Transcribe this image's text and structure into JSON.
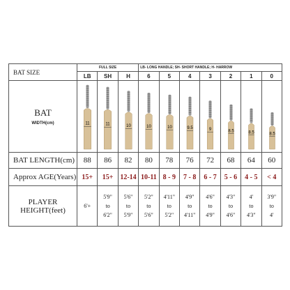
{
  "header": {
    "title": "BAT SIZE",
    "full_size": "FULL SIZE",
    "legend": "LB- LONG HANDLE; SH- SHORT HANDLE; H- HARROW"
  },
  "columns": [
    "LB",
    "SH",
    "H",
    "6",
    "5",
    "4",
    "3",
    "2",
    "1",
    "0"
  ],
  "bat": {
    "label": "BAT",
    "sublabel": "WIDTH(cm)",
    "widths": [
      11,
      11,
      10,
      10,
      10,
      9.5,
      9,
      8.5,
      8.5,
      8.5
    ]
  },
  "length": {
    "label": "BAT LENGTH(cm)",
    "values": [
      88,
      86,
      82,
      80,
      78,
      76,
      72,
      68,
      64,
      60
    ]
  },
  "age": {
    "label": "Approx AGE(Years)",
    "values": [
      "15+",
      "15+",
      "12-14",
      "10-11",
      "8 - 9",
      "7 - 8",
      "6 - 7",
      "5 - 6",
      "4 - 5",
      "< 4"
    ]
  },
  "height": {
    "label": "PLAYER HEIGHT(feet)",
    "values": [
      [
        "6'+"
      ],
      [
        "5'9\"",
        "to",
        "6'2\""
      ],
      [
        "5'6\"",
        "to",
        "5'9\""
      ],
      [
        "5'2\"",
        "to",
        "5'6\""
      ],
      [
        "4'11\"",
        "to",
        "5'2\""
      ],
      [
        "4'9\"",
        "to",
        "4'11\""
      ],
      [
        "4'6\"",
        "to",
        "4'9\""
      ],
      [
        "4'3\"",
        "to",
        "4'6\""
      ],
      [
        "4'",
        "to",
        "4'3\""
      ],
      [
        "3'9\"",
        "to",
        "4'"
      ]
    ]
  }
}
